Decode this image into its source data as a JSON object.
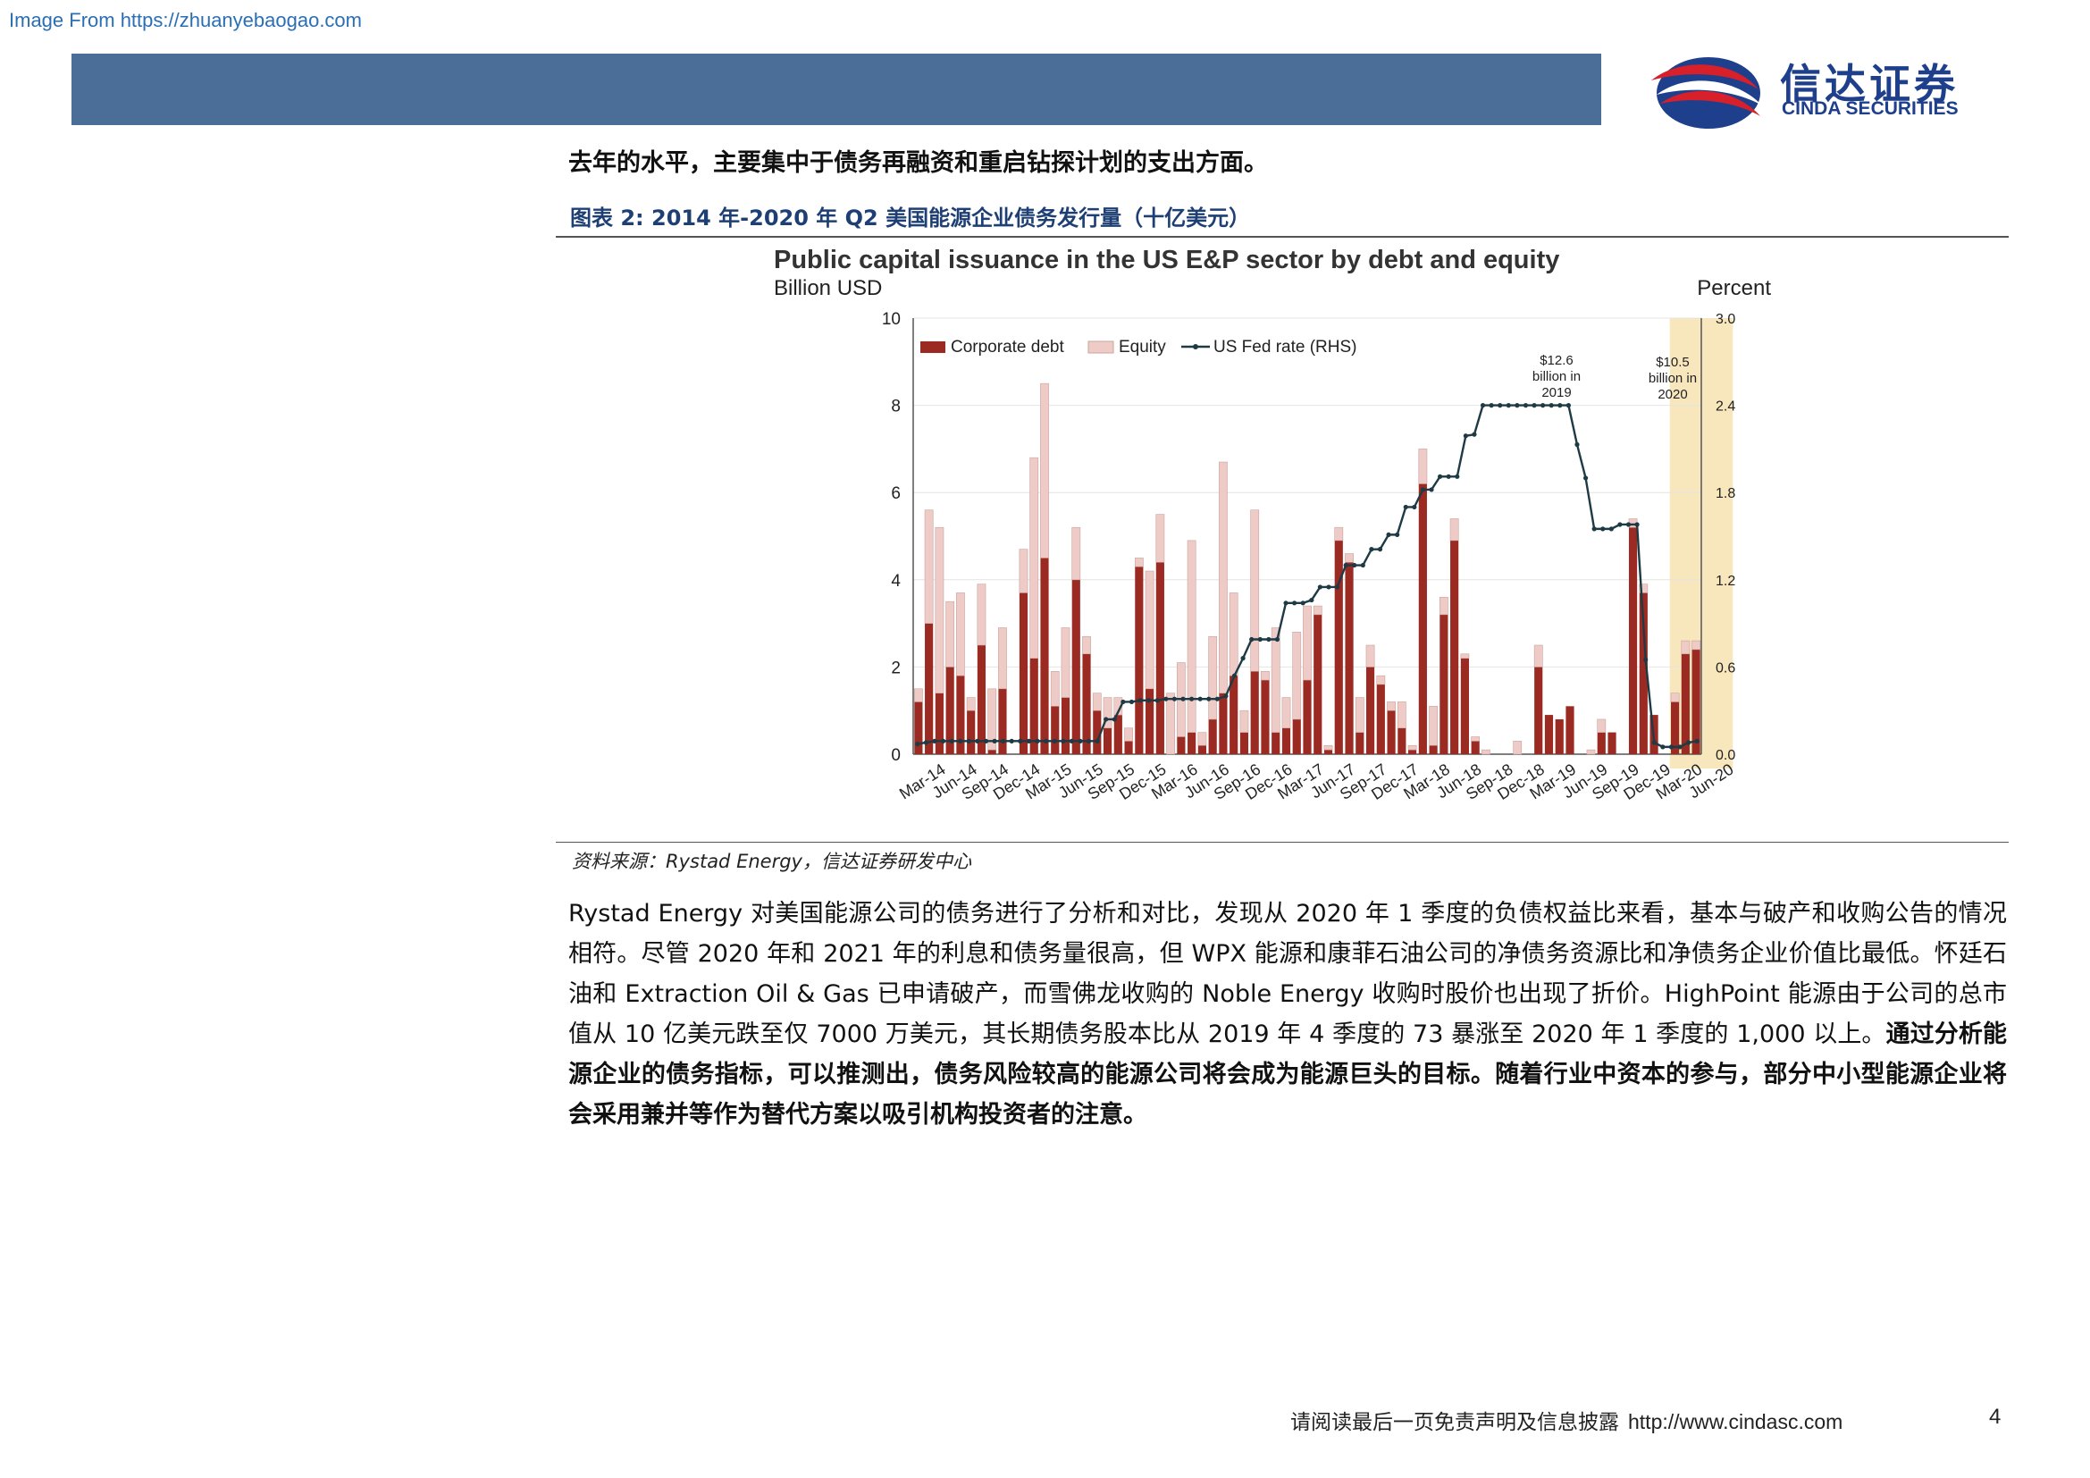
{
  "source_link": "Image From https://zhuanyebaogao.com",
  "logo": {
    "cn": "信达证券",
    "en": "CINDA SECURITIES"
  },
  "lead_line": "去年的水平，主要集中于债务再融资和重启钻探计划的支出方面。",
  "figure_title": "图表 2:  2014 年-2020 年 Q2 美国能源企业债务发行量（十亿美元）",
  "figure_source": "资料来源：Rystad Energy，信达证券研发中心",
  "body_paragraph": {
    "normal": "Rystad Energy 对美国能源公司的债务进行了分析和对比，发现从 2020 年 1 季度的负债权益比来看，基本与破产和收购公告的情况相符。尽管 2020 年和 2021 年的利息和债务量很高，但 WPX 能源和康菲石油公司的净债务资源比和净债务企业价值比最低。怀廷石油和 Extraction Oil & Gas 已申请破产，而雪佛龙收购的 Noble Energy 收购时股价也出现了折价。HighPoint 能源由于公司的总市值从 10 亿美元跌至仅 7000 万美元，其长期债务股本比从 2019 年 4 季度的 73 暴涨至 2020 年 1 季度的 1,000 以上。",
    "bold": "通过分析能源企业的债务指标，可以推测出，债务风险较高的能源公司将会成为能源巨头的目标。随着行业中资本的参与，部分中小型能源企业将会采用兼并等作为替代方案以吸引机构投资者的注意。"
  },
  "footer": {
    "text": "请阅读最后一页免责声明及信息披露",
    "url": "http://www.cindasc.com",
    "page": "4"
  },
  "colors": {
    "header": "#4a6e98",
    "debt": "#9b2a22",
    "equity": "#eecbc6",
    "fed": "#1e3a44",
    "highlight": "#f8e6bd"
  },
  "chart_data": {
    "type": "bar",
    "title": "Public capital issuance in the US E&P sector by debt and equity",
    "ylabel_left": "Billion USD",
    "ylabel_right": "Percent",
    "ylim": [
      0,
      10
    ],
    "ylim_right": [
      0,
      3.0
    ],
    "yticks_left": [
      "0",
      "2",
      "4",
      "6",
      "8",
      "10"
    ],
    "yticks_right": [
      "0.0",
      "0.6",
      "1.2",
      "1.8",
      "2.4",
      "3.0"
    ],
    "xtick_labels": [
      "Mar-14",
      "Jun-14",
      "Sep-14",
      "Dec-14",
      "Mar-15",
      "Jun-15",
      "Sep-15",
      "Dec-15",
      "Mar-16",
      "Jun-16",
      "Sep-16",
      "Dec-16",
      "Mar-17",
      "Jun-17",
      "Sep-17",
      "Dec-17",
      "Mar-18",
      "Jun-18",
      "Sep-18",
      "Dec-18",
      "Mar-19",
      "Jun-19",
      "Sep-19",
      "Dec-19",
      "Mar-20",
      "Jun-20"
    ],
    "start_month": "Jan-14",
    "legend": [
      "Corporate debt",
      "Equity",
      "US Fed rate (RHS)"
    ],
    "legend_position": "top-left",
    "stacked": true,
    "annotations": [
      {
        "text": "$12.6 billion in 2019",
        "lines": [
          "$12.6",
          "billion in",
          "2019"
        ]
      },
      {
        "text": "$10.5 billion in 2020",
        "lines": [
          "$10.5",
          "billion in",
          "2020"
        ]
      }
    ],
    "highlight_range": [
      "Jan-20",
      "Jun-20"
    ],
    "series": [
      {
        "name": "Corporate debt",
        "values": [
          1.2,
          3.0,
          1.4,
          2.0,
          1.8,
          1.0,
          2.5,
          0.1,
          1.5,
          0.0,
          3.7,
          2.2,
          4.5,
          1.1,
          1.3,
          4.0,
          2.3,
          1.0,
          0.6,
          0.9,
          0.3,
          4.3,
          1.5,
          4.4,
          0.0,
          0.4,
          0.5,
          0.2,
          0.8,
          1.4,
          1.8,
          0.5,
          1.9,
          1.7,
          0.5,
          0.6,
          0.8,
          1.7,
          3.2,
          0.1,
          4.9,
          4.4,
          0.5,
          2.0,
          1.6,
          1.0,
          0.6,
          0.1,
          6.2,
          0.2,
          3.2,
          4.9,
          2.2,
          0.3,
          0.0,
          0.0,
          0.0,
          0.0,
          0.0,
          2.0,
          0.9,
          0.8,
          1.1,
          0.0,
          0.0,
          0.5,
          0.5,
          0.0,
          5.2,
          3.7,
          0.9,
          0.0,
          1.2,
          2.3,
          2.4
        ]
      },
      {
        "name": "Equity",
        "values": [
          0.3,
          2.6,
          3.8,
          1.5,
          1.9,
          0.3,
          1.4,
          1.4,
          1.4,
          0.0,
          1.0,
          4.6,
          4.0,
          0.8,
          1.6,
          1.2,
          0.4,
          0.4,
          0.7,
          0.4,
          0.3,
          0.2,
          2.7,
          1.1,
          1.4,
          1.7,
          4.4,
          0.3,
          1.9,
          5.3,
          1.9,
          0.5,
          3.7,
          0.2,
          2.4,
          0.7,
          2.0,
          1.7,
          0.2,
          0.1,
          0.3,
          0.2,
          0.8,
          0.5,
          0.2,
          0.2,
          0.6,
          0.1,
          0.8,
          0.9,
          0.4,
          0.5,
          0.1,
          0.1,
          0.1,
          0.0,
          0.0,
          0.3,
          0.0,
          0.5,
          0.0,
          0.0,
          0.0,
          0.0,
          0.1,
          0.3,
          0.0,
          0.0,
          0.2,
          0.2,
          0.0,
          0.0,
          0.2,
          0.3,
          0.2
        ]
      },
      {
        "name": "US Fed rate (RHS)",
        "values": [
          0.07,
          0.08,
          0.09,
          0.09,
          0.09,
          0.09,
          0.09,
          0.09,
          0.09,
          0.09,
          0.09,
          0.09,
          0.09,
          0.09,
          0.09,
          0.09,
          0.09,
          0.09,
          0.09,
          0.09,
          0.09,
          0.09,
          0.24,
          0.24,
          0.36,
          0.36,
          0.37,
          0.37,
          0.37,
          0.38,
          0.38,
          0.38,
          0.38,
          0.38,
          0.38,
          0.38,
          0.4,
          0.54,
          0.66,
          0.79,
          0.79,
          0.79,
          0.79,
          1.04,
          1.04,
          1.04,
          1.06,
          1.15,
          1.15,
          1.15,
          1.3,
          1.3,
          1.3,
          1.41,
          1.41,
          1.51,
          1.51,
          1.7,
          1.7,
          1.82,
          1.82,
          1.91,
          1.91,
          1.91,
          2.19,
          2.2,
          2.4,
          2.4,
          2.4,
          2.4,
          2.4,
          2.4,
          2.4,
          2.4,
          2.4,
          2.4,
          2.4,
          2.13,
          1.9,
          1.55,
          1.55,
          1.55,
          1.58,
          1.58,
          1.58,
          0.65,
          0.08,
          0.05,
          0.05,
          0.05,
          0.08,
          0.09
        ]
      }
    ]
  }
}
